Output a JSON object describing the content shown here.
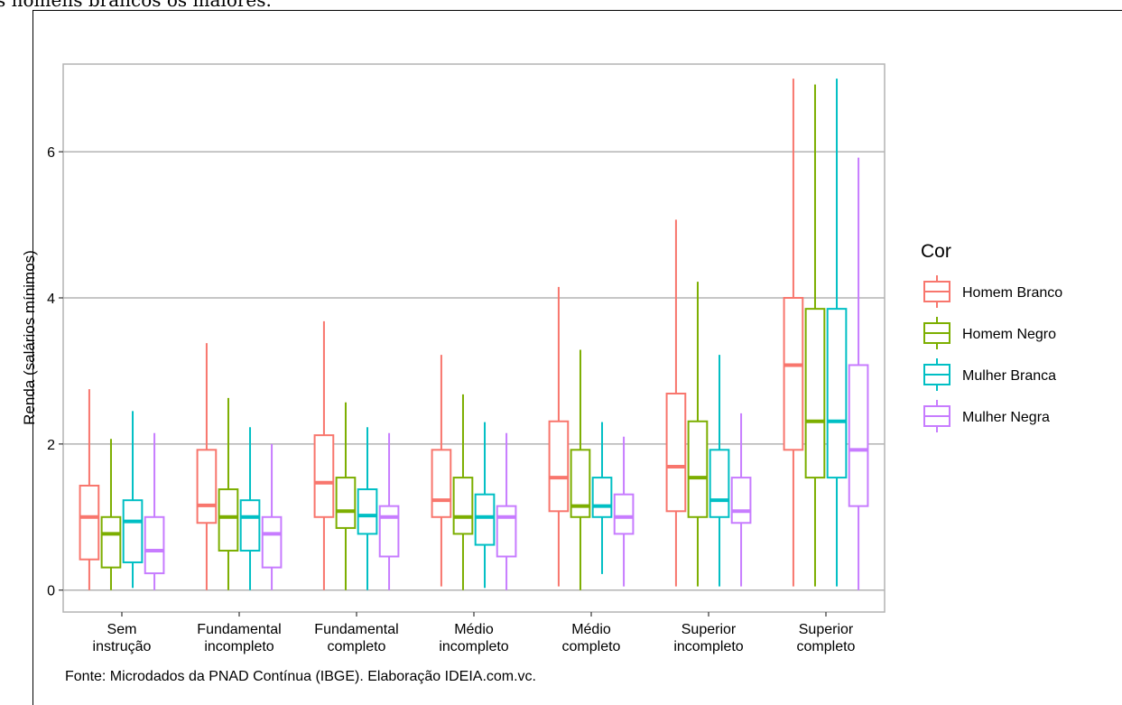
{
  "caption_fragment": "s homens brancos os maiores.",
  "source_note": "Fonte: Microdados da PNAD Contínua (IBGE). Elaboração IDEIA.com.vc.",
  "chart_data": {
    "type": "boxplot",
    "xlabel": "",
    "ylabel": "Renda (salários mínimos)",
    "ylim": [
      -0.3,
      7.2
    ],
    "yticks": [
      0,
      2,
      4,
      6
    ],
    "grid": true,
    "legend_title": "Cor",
    "legend_position": "right",
    "categories": [
      [
        "Sem",
        "instrução"
      ],
      [
        "Fundamental",
        "incompleto"
      ],
      [
        "Fundamental",
        "completo"
      ],
      [
        "Médio",
        "incompleto"
      ],
      [
        "Médio",
        "completo"
      ],
      [
        "Superior",
        "incompleto"
      ],
      [
        "Superior",
        "completo"
      ]
    ],
    "series": [
      {
        "name": "Homem Branco",
        "color": "#F8766D",
        "boxes": [
          {
            "min": 0,
            "q1": 0.42,
            "median": 1.0,
            "q3": 1.43,
            "max": 2.75
          },
          {
            "min": 0,
            "q1": 0.92,
            "median": 1.16,
            "q3": 1.92,
            "max": 3.38
          },
          {
            "min": 0,
            "q1": 1.0,
            "median": 1.47,
            "q3": 2.12,
            "max": 3.68
          },
          {
            "min": 0.05,
            "q1": 1.0,
            "median": 1.23,
            "q3": 1.92,
            "max": 3.22
          },
          {
            "min": 0.05,
            "q1": 1.08,
            "median": 1.54,
            "q3": 2.31,
            "max": 4.15
          },
          {
            "min": 0.05,
            "q1": 1.08,
            "median": 1.69,
            "q3": 2.69,
            "max": 5.07
          },
          {
            "min": 0.05,
            "q1": 1.92,
            "median": 3.08,
            "q3": 4.0,
            "max": 7.0
          }
        ]
      },
      {
        "name": "Homem Negro",
        "color": "#7CAE00",
        "boxes": [
          {
            "min": 0,
            "q1": 0.31,
            "median": 0.77,
            "q3": 1.0,
            "max": 2.07
          },
          {
            "min": 0,
            "q1": 0.54,
            "median": 1.0,
            "q3": 1.38,
            "max": 2.63
          },
          {
            "min": 0,
            "q1": 0.85,
            "median": 1.08,
            "q3": 1.54,
            "max": 2.57
          },
          {
            "min": 0,
            "q1": 0.77,
            "median": 1.0,
            "q3": 1.54,
            "max": 2.68
          },
          {
            "min": 0,
            "q1": 1.0,
            "median": 1.15,
            "q3": 1.92,
            "max": 3.29
          },
          {
            "min": 0.05,
            "q1": 1.0,
            "median": 1.54,
            "q3": 2.31,
            "max": 4.22
          },
          {
            "min": 0.05,
            "q1": 1.54,
            "median": 2.31,
            "q3": 3.85,
            "max": 6.92
          }
        ]
      },
      {
        "name": "Mulher Branca",
        "color": "#00BFC4",
        "boxes": [
          {
            "min": 0.03,
            "q1": 0.38,
            "median": 0.94,
            "q3": 1.23,
            "max": 2.45
          },
          {
            "min": 0,
            "q1": 0.54,
            "median": 1.0,
            "q3": 1.23,
            "max": 2.23
          },
          {
            "min": 0,
            "q1": 0.77,
            "median": 1.02,
            "q3": 1.38,
            "max": 2.23
          },
          {
            "min": 0.03,
            "q1": 0.62,
            "median": 1.0,
            "q3": 1.31,
            "max": 2.3
          },
          {
            "min": 0.22,
            "q1": 1.0,
            "median": 1.15,
            "q3": 1.54,
            "max": 2.3
          },
          {
            "min": 0.05,
            "q1": 1.0,
            "median": 1.23,
            "q3": 1.92,
            "max": 3.22
          },
          {
            "min": 0.05,
            "q1": 1.54,
            "median": 2.31,
            "q3": 3.85,
            "max": 7.0
          }
        ]
      },
      {
        "name": "Mulher Negra",
        "color": "#C77CFF",
        "boxes": [
          {
            "min": 0,
            "q1": 0.23,
            "median": 0.54,
            "q3": 1.0,
            "max": 2.15
          },
          {
            "min": 0,
            "q1": 0.31,
            "median": 0.77,
            "q3": 1.0,
            "max": 2.0
          },
          {
            "min": 0,
            "q1": 0.46,
            "median": 1.0,
            "q3": 1.15,
            "max": 2.15
          },
          {
            "min": 0,
            "q1": 0.46,
            "median": 1.0,
            "q3": 1.15,
            "max": 2.15
          },
          {
            "min": 0.05,
            "q1": 0.77,
            "median": 1.0,
            "q3": 1.31,
            "max": 2.1
          },
          {
            "min": 0.05,
            "q1": 0.92,
            "median": 1.08,
            "q3": 1.54,
            "max": 2.42
          },
          {
            "min": 0,
            "q1": 1.15,
            "median": 1.92,
            "q3": 3.08,
            "max": 5.92
          }
        ]
      }
    ]
  }
}
